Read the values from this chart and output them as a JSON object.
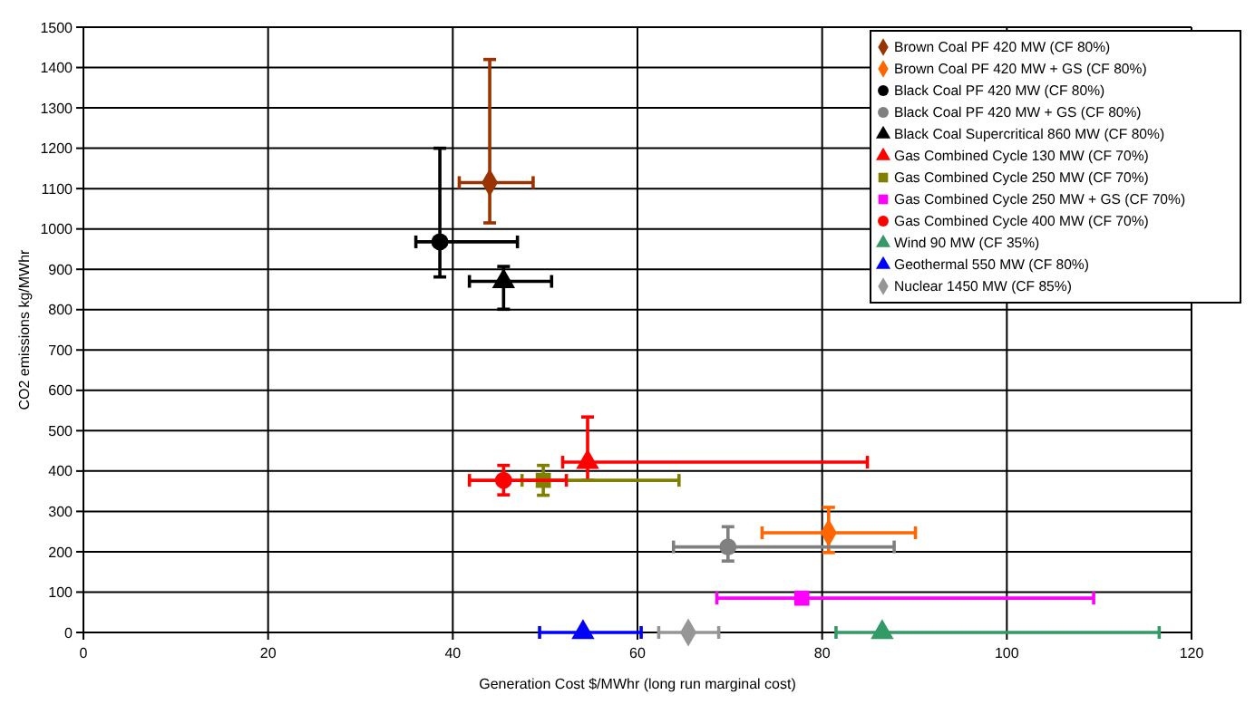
{
  "chart_data": {
    "type": "scatter",
    "xlabel": "Generation Cost $/MWhr (long run marginal cost)",
    "ylabel": "CO2 emissions kg/MWhr",
    "xlim": [
      0,
      120
    ],
    "xticks": [
      0,
      20,
      40,
      60,
      80,
      100,
      120
    ],
    "ylim": [
      0,
      1500
    ],
    "yticks": [
      0,
      100,
      200,
      300,
      400,
      500,
      600,
      700,
      800,
      900,
      1000,
      1100,
      1200,
      1300,
      1400,
      1500
    ],
    "grid": true,
    "legend": "top right",
    "series": [
      {
        "name": "Brown Coal PF 420 MW (CF 80%)",
        "color": "#993300",
        "marker": "diamond",
        "x": [
          44.0
        ],
        "values": [
          1115
        ],
        "errors": [
          [
            1015,
            1420
          ]
        ],
        "xerrors": [
          [
            40.7,
            48.7
          ]
        ]
      },
      {
        "name": "Brown Coal PF 420 MW + GS (CF 80%)",
        "color": "#ff6600",
        "marker": "diamond",
        "x": [
          80.7
        ],
        "values": [
          247
        ],
        "errors": [
          [
            198,
            310
          ]
        ],
        "xerrors": [
          [
            73.5,
            90.1
          ]
        ]
      },
      {
        "name": "Black Coal PF 420 MW (CF 80%)",
        "color": "#000000",
        "marker": "circle",
        "x": [
          38.6
        ],
        "values": [
          968
        ],
        "errors": [
          [
            881,
            1200
          ]
        ],
        "xerrors": [
          [
            36.0,
            47.0
          ]
        ]
      },
      {
        "name": "Black Coal PF 420 MW + GS (CF 80%)",
        "color": "#808080",
        "marker": "circle",
        "x": [
          69.8
        ],
        "values": [
          212
        ],
        "errors": [
          [
            177,
            262
          ]
        ],
        "xerrors": [
          [
            63.9,
            87.8
          ]
        ]
      },
      {
        "name": "Black Coal Supercritical 860 MW (CF 80%)",
        "color": "#000000",
        "marker": "triangle",
        "x": [
          45.5
        ],
        "values": [
          870
        ],
        "errors": [
          [
            801,
            907
          ]
        ],
        "xerrors": [
          [
            41.8,
            50.7
          ]
        ]
      },
      {
        "name": "Gas Combined Cycle 130 MW (CF 70%)",
        "color": "#ff0000",
        "marker": "triangle",
        "x": [
          54.6
        ],
        "values": [
          422
        ],
        "errors": [
          [
            377,
            534
          ]
        ],
        "xerrors": [
          [
            51.9,
            84.9
          ]
        ]
      },
      {
        "name": "Gas Combined Cycle 250 MW (CF 70%)",
        "color": "#808000",
        "marker": "square",
        "x": [
          49.8
        ],
        "values": [
          377
        ],
        "errors": [
          [
            340,
            414
          ]
        ],
        "xerrors": [
          [
            47.5,
            64.5
          ]
        ]
      },
      {
        "name": "Gas Combined Cycle 250 MW + GS (CF 70%)",
        "color": "#ff00ff",
        "marker": "square",
        "x": [
          77.8
        ],
        "values": [
          85
        ],
        "errors": [
          null
        ],
        "xerrors": [
          [
            68.6,
            109.4
          ]
        ]
      },
      {
        "name": "Gas Combined Cycle 400 MW (CF 70%)",
        "color": "#ff0000",
        "marker": "circle",
        "x": [
          45.5
        ],
        "values": [
          377
        ],
        "errors": [
          [
            341,
            414
          ]
        ],
        "xerrors": [
          [
            41.8,
            52.3
          ]
        ]
      },
      {
        "name": "Wind 90 MW (CF 35%)",
        "color": "#339966",
        "marker": "triangle",
        "x": [
          86.5
        ],
        "values": [
          0
        ],
        "errors": [
          null
        ],
        "xerrors": [
          [
            81.5,
            116.5
          ]
        ]
      },
      {
        "name": "Geothermal 550 MW (CF 80%)",
        "color": "#0000ff",
        "marker": "triangle",
        "x": [
          54.1
        ],
        "values": [
          0
        ],
        "errors": [
          null
        ],
        "xerrors": [
          [
            49.4,
            60.4
          ]
        ]
      },
      {
        "name": "Nuclear 1450 MW (CF 85%)",
        "color": "#969696",
        "marker": "diamond",
        "x": [
          65.5
        ],
        "values": [
          0
        ],
        "errors": [
          null
        ],
        "xerrors": [
          [
            62.3,
            68.8
          ]
        ]
      }
    ]
  }
}
